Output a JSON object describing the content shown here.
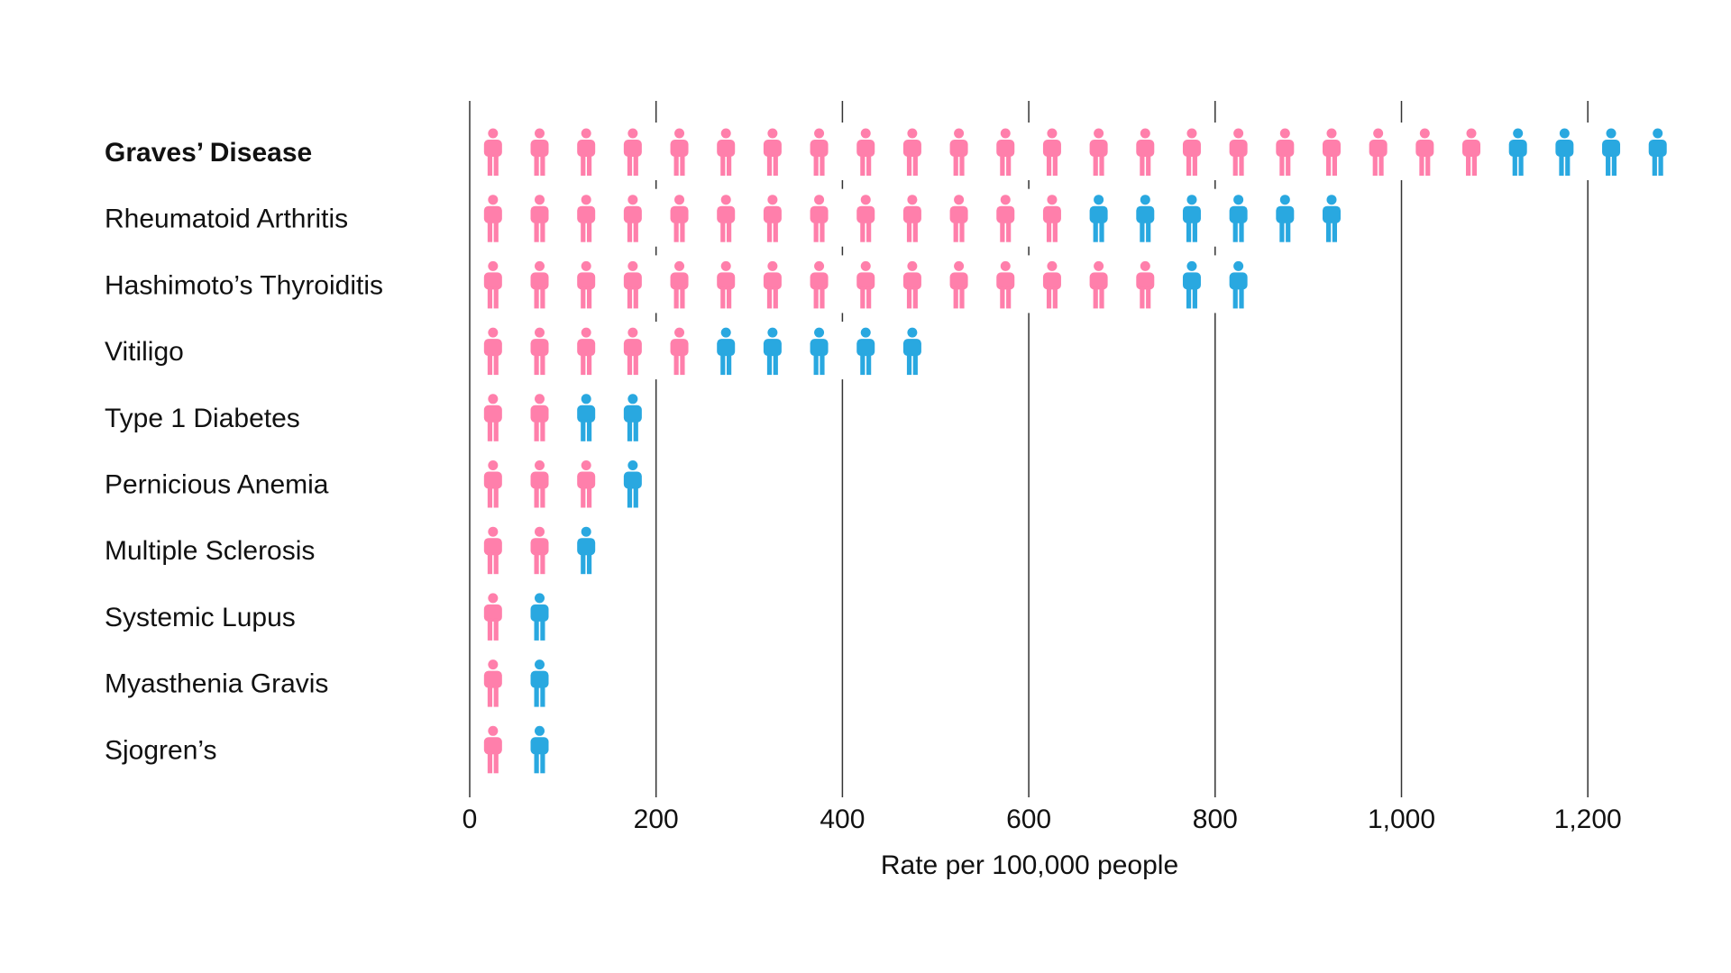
{
  "chart_data": {
    "type": "bar",
    "title": "",
    "xlabel": "Rate per 100,000 people",
    "ylabel": "",
    "xlim": [
      0,
      1260
    ],
    "x_ticks": [
      0,
      200,
      400,
      600,
      800,
      1000,
      1200
    ],
    "x_tick_labels": [
      "0",
      "200",
      "400",
      "600",
      "800",
      "1,000",
      "1,200"
    ],
    "grid": true,
    "legend": "none",
    "icon_unit": 50,
    "categories": [
      "Graves’ Disease",
      "Rheumatoid Arthritis",
      "Hashimoto’s Thyroiditis",
      "Vitiligo",
      "Type 1 Diabetes",
      "Pernicious Anemia",
      "Multiple Sclerosis",
      "Systemic Lupus",
      "Myasthenia Gravis",
      "Sjogren’s"
    ],
    "highlight_category": "Graves’ Disease",
    "series": [
      {
        "color": "#ff7fab",
        "values": [
          1100,
          650,
          750,
          250,
          100,
          150,
          100,
          50,
          50,
          50
        ]
      },
      {
        "color": "#29a8e0",
        "values": [
          200,
          300,
          100,
          250,
          100,
          50,
          50,
          50,
          50,
          50
        ]
      }
    ]
  }
}
